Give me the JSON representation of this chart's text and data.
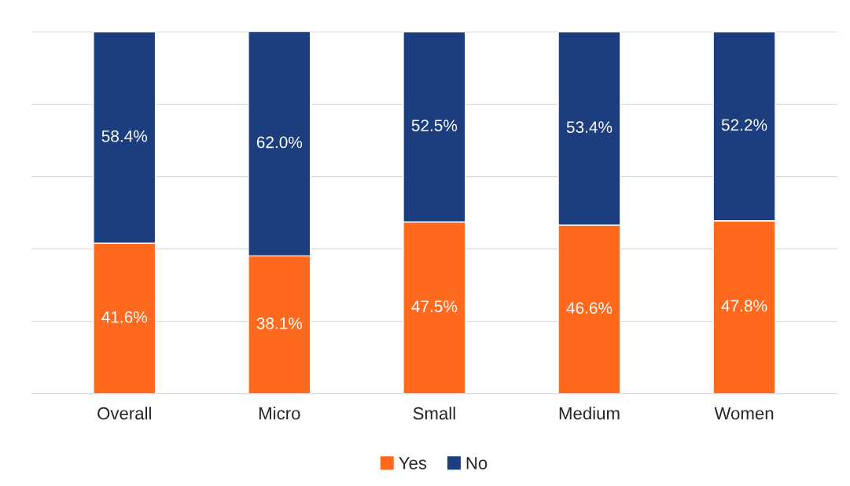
{
  "chart_data": {
    "type": "bar",
    "stacked": true,
    "categories": [
      "Overall",
      "Micro",
      "Small",
      "Medium",
      "Women"
    ],
    "series": [
      {
        "name": "Yes",
        "color": "#ff6a1f",
        "values": [
          41.6,
          38.1,
          47.5,
          46.6,
          47.8
        ],
        "value_labels": [
          "41.6%",
          "38.1%",
          "47.5%",
          "46.6%",
          "47.8%"
        ]
      },
      {
        "name": "No",
        "color": "#1c3d7e",
        "values": [
          58.4,
          62.0,
          52.5,
          53.4,
          52.2
        ],
        "value_labels": [
          "58.4%",
          "62.0%",
          "52.5%",
          "53.4%",
          "52.2%"
        ]
      }
    ],
    "tick_labels": "x",
    "grid": "y",
    "legend": "bottom"
  }
}
